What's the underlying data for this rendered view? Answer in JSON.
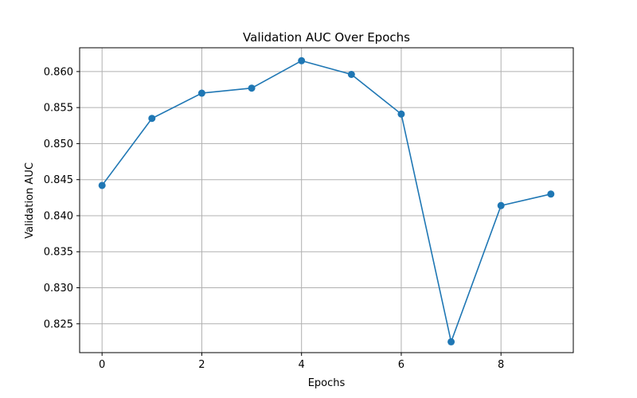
{
  "chart_data": {
    "type": "line",
    "title": "Validation AUC Over Epochs",
    "xlabel": "Epochs",
    "ylabel": "Validation AUC",
    "x": [
      0,
      1,
      2,
      3,
      4,
      5,
      6,
      7,
      8,
      9
    ],
    "series": [
      {
        "values": [
          0.8442,
          0.8535,
          0.857,
          0.8577,
          0.8615,
          0.8596,
          0.8541,
          0.8225,
          0.8414,
          0.843
        ],
        "color": "#1f77b4",
        "marker": "circle"
      }
    ],
    "xlim": [
      -0.45,
      9.45
    ],
    "ylim": [
      0.821,
      0.8633
    ],
    "xticks": [
      0,
      2,
      4,
      6,
      8
    ],
    "xtick_labels": [
      "0",
      "2",
      "4",
      "6",
      "8"
    ],
    "yticks": [
      0.825,
      0.83,
      0.835,
      0.84,
      0.845,
      0.85,
      0.855,
      0.86
    ],
    "ytick_labels": [
      "0.825",
      "0.830",
      "0.835",
      "0.840",
      "0.845",
      "0.850",
      "0.855",
      "0.860"
    ],
    "grid": true,
    "grid_color": "#b0b0b0"
  }
}
